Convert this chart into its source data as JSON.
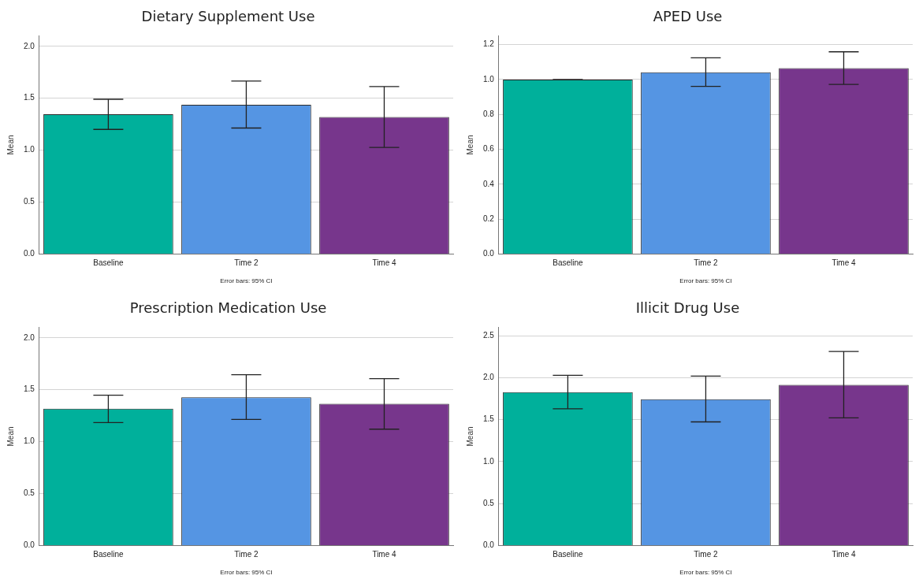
{
  "chart_data": [
    {
      "type": "bar",
      "title": "Dietary Supplement Use",
      "ylabel": "Mean",
      "annotations": [
        "Error bars: 95% CI"
      ],
      "categories": [
        "Baseline",
        "Time 2",
        "Time 4"
      ],
      "values": [
        1.345,
        1.437,
        1.32
      ],
      "colors": [
        "#00b09b",
        "#5595e3",
        "#77368c"
      ],
      "errors": [
        [
          1.2,
          1.49
        ],
        [
          1.213,
          1.666
        ],
        [
          1.026,
          1.613
        ]
      ],
      "ylim": [
        0,
        2.1
      ],
      "yticks": [
        {
          "value": 0,
          "label": "0.0"
        },
        {
          "value": 0.5,
          "label": "0.5"
        },
        {
          "value": 1,
          "label": "1.0"
        },
        {
          "value": 1.5,
          "label": "1.5"
        },
        {
          "value": 2,
          "label": "2.0"
        }
      ],
      "grid": "y"
    },
    {
      "type": "bar",
      "title": "APED Use",
      "ylabel": "Mean",
      "annotations": [
        "Error bars: 95% CI"
      ],
      "categories": [
        "Baseline",
        "Time 2",
        "Time 4"
      ],
      "values": [
        1.0,
        1.042,
        1.065
      ],
      "colors": [
        "#00b09b",
        "#5595e3",
        "#77368c"
      ],
      "errors": [
        [
          1.0,
          1.0
        ],
        [
          0.961,
          1.125
        ],
        [
          0.972,
          1.159
        ]
      ],
      "ylim": [
        0,
        1.25
      ],
      "yticks": [
        {
          "value": 0,
          "label": "0.0"
        },
        {
          "value": 0.2,
          "label": "0.2"
        },
        {
          "value": 0.4,
          "label": "0.4"
        },
        {
          "value": 0.6,
          "label": "0.6"
        },
        {
          "value": 0.8,
          "label": "0.8"
        },
        {
          "value": 1,
          "label": "1.0"
        },
        {
          "value": 1.2,
          "label": "1.2"
        }
      ],
      "grid": "y"
    },
    {
      "type": "bar",
      "title": "Prescription Medication Use",
      "ylabel": "Mean",
      "annotations": [
        "Error bars: 95% CI"
      ],
      "categories": [
        "Baseline",
        "Time 2",
        "Time 4"
      ],
      "values": [
        1.317,
        1.427,
        1.364
      ],
      "colors": [
        "#00b09b",
        "#5595e3",
        "#77368c"
      ],
      "errors": [
        [
          1.183,
          1.448
        ],
        [
          1.214,
          1.645
        ],
        [
          1.12,
          1.606
        ]
      ],
      "ylim": [
        0,
        2.1
      ],
      "yticks": [
        {
          "value": 0,
          "label": "0.0"
        },
        {
          "value": 0.5,
          "label": "0.5"
        },
        {
          "value": 1,
          "label": "1.0"
        },
        {
          "value": 1.5,
          "label": "1.5"
        },
        {
          "value": 2,
          "label": "2.0"
        }
      ],
      "grid": "y"
    },
    {
      "type": "bar",
      "title": "Illicit Drug Use",
      "ylabel": "Mean",
      "annotations": [
        "Error bars: 95% CI"
      ],
      "categories": [
        "Baseline",
        "Time 2",
        "Time 4"
      ],
      "values": [
        1.829,
        1.743,
        1.916
      ],
      "colors": [
        "#00b09b",
        "#5595e3",
        "#77368c"
      ],
      "errors": [
        [
          1.63,
          2.029
        ],
        [
          1.474,
          2.019
        ],
        [
          1.521,
          2.314
        ]
      ],
      "ylim": [
        0,
        2.6
      ],
      "yticks": [
        {
          "value": 0,
          "label": "0.0"
        },
        {
          "value": 0.5,
          "label": "0.5"
        },
        {
          "value": 1,
          "label": "1.0"
        },
        {
          "value": 1.5,
          "label": "1.5"
        },
        {
          "value": 2,
          "label": "2.0"
        },
        {
          "value": 2.5,
          "label": "2.5"
        }
      ],
      "grid": "y"
    }
  ]
}
